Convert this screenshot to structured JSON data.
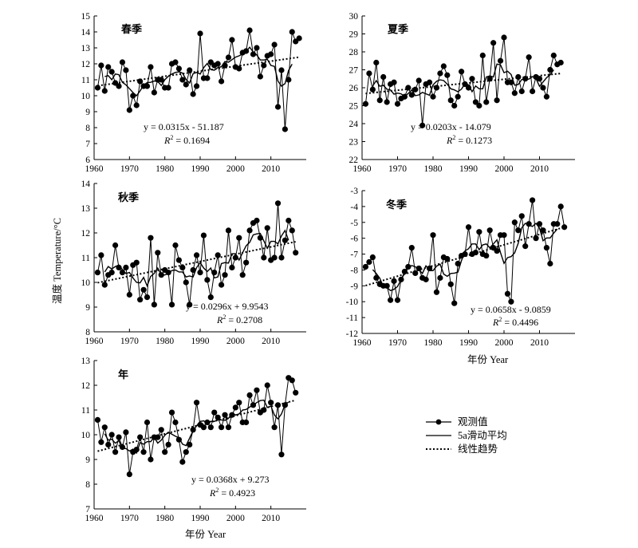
{
  "y_axis_label": "温度 Temperature/°C",
  "legend": {
    "observed": "观测值",
    "moving_avg": "5a滑动平均",
    "trend": "线性趋势"
  },
  "chart_data": [
    {
      "type": "line",
      "title": "春季",
      "xlabel": "",
      "ylabel": "温度 Temperature/°C",
      "xlim": [
        1960,
        2020
      ],
      "ylim": [
        6,
        15
      ],
      "xticks": [
        1960,
        1970,
        1980,
        1990,
        2000,
        2010
      ],
      "yticks": [
        6,
        7,
        8,
        9,
        10,
        11,
        12,
        13,
        14,
        15
      ],
      "years_start": 1961,
      "values": [
        10.5,
        11.9,
        10.3,
        11.8,
        11.5,
        10.8,
        10.6,
        12.1,
        11.6,
        9.1,
        10.0,
        9.4,
        10.9,
        10.6,
        10.6,
        11.8,
        10.2,
        11.0,
        11.0,
        10.5,
        10.5,
        12.0,
        12.1,
        11.7,
        11.0,
        10.7,
        11.6,
        10.1,
        10.6,
        13.9,
        11.1,
        11.1,
        12.1,
        11.9,
        12.0,
        10.9,
        11.9,
        12.4,
        13.5,
        11.8,
        11.7,
        12.7,
        12.8,
        14.1,
        12.6,
        13.0,
        11.2,
        11.9,
        12.5,
        12.6,
        13.2,
        9.3,
        11.6,
        7.9,
        11.0,
        14.0,
        13.4,
        13.6
      ],
      "trend": {
        "slope": 0.0315,
        "intercept": -51.187
      },
      "equation": "y = 0.0315x -  51.187",
      "r2_label": "R",
      "r2_value": " = 0.1694"
    },
    {
      "type": "line",
      "title": "夏季",
      "xlabel": "",
      "ylabel": "",
      "xlim": [
        1960,
        2020
      ],
      "ylim": [
        22,
        30
      ],
      "xticks": [
        1960,
        1970,
        1980,
        1990,
        2000,
        2010
      ],
      "yticks": [
        22,
        23,
        24,
        25,
        26,
        27,
        28,
        29,
        30
      ],
      "years_start": 1961,
      "values": [
        25.1,
        26.8,
        25.9,
        27.4,
        25.3,
        26.6,
        25.2,
        26.2,
        26.3,
        25.1,
        25.4,
        25.5,
        26.0,
        25.6,
        25.9,
        26.4,
        23.9,
        26.2,
        26.3,
        25.5,
        26.0,
        26.8,
        27.2,
        26.7,
        25.3,
        25.0,
        25.5,
        26.9,
        26.2,
        26.0,
        26.5,
        25.2,
        25.0,
        27.8,
        25.2,
        26.5,
        28.5,
        25.3,
        27.5,
        28.8,
        26.3,
        26.3,
        25.7,
        26.6,
        25.8,
        26.5,
        27.7,
        25.8,
        26.6,
        26.5,
        26.0,
        25.5,
        27.0,
        27.8,
        27.3,
        27.4
      ],
      "trend": {
        "slope": 0.0203,
        "intercept": -14.079
      },
      "equation": "y = 0.0203x -  14.079",
      "r2_label": "R",
      "r2_value": " = 0.1273"
    },
    {
      "type": "line",
      "title": "秋季",
      "xlabel": "",
      "ylabel": "",
      "xlim": [
        1960,
        2020
      ],
      "ylim": [
        8,
        14
      ],
      "xticks": [
        1960,
        1970,
        1980,
        1990,
        2000,
        2010
      ],
      "yticks": [
        8,
        9,
        10,
        11,
        12,
        13,
        14
      ],
      "years_start": 1961,
      "values": [
        10.4,
        11.1,
        9.9,
        10.3,
        10.4,
        11.5,
        10.6,
        10.4,
        10.6,
        9.5,
        10.7,
        10.8,
        9.3,
        9.7,
        9.4,
        11.8,
        9.1,
        11.2,
        10.3,
        10.5,
        10.4,
        9.1,
        11.5,
        10.9,
        10.6,
        10.0,
        9.1,
        10.5,
        11.1,
        10.4,
        11.9,
        10.1,
        9.4,
        10.4,
        11.1,
        9.9,
        10.3,
        12.1,
        10.6,
        11.0,
        11.8,
        10.3,
        10.8,
        12.1,
        12.4,
        12.5,
        11.8,
        11.0,
        12.2,
        10.9,
        11.0,
        13.2,
        11.0,
        11.7,
        12.5,
        12.1,
        11.2
      ],
      "trend": {
        "slope": 0.0296,
        "intercept": 9.9543
      },
      "equation": "y = 0.0296x + 9.9543",
      "r2_label": "R",
      "r2_value": " = 0.2708"
    },
    {
      "type": "line",
      "title": "冬季",
      "xlabel": "年份 Year",
      "ylabel": "",
      "xlim": [
        1960,
        2020
      ],
      "ylim": [
        -12,
        -3
      ],
      "xticks": [
        1960,
        1970,
        1980,
        1990,
        2000,
        2010
      ],
      "yticks": [
        -12,
        -11,
        -10,
        -9,
        -8,
        -7,
        -6,
        -5,
        -4,
        -3
      ],
      "years_start": 1961,
      "values": [
        -7.8,
        -7.5,
        -7.2,
        -8.5,
        -8.9,
        -9.0,
        -9.0,
        -9.9,
        -8.7,
        -9.9,
        -8.6,
        -8.1,
        -7.8,
        -6.6,
        -8.2,
        -7.9,
        -8.5,
        -8.6,
        -7.9,
        -5.8,
        -9.4,
        -8.5,
        -7.2,
        -7.3,
        -8.9,
        -10.1,
        -7.6,
        -7.1,
        -7.0,
        -5.3,
        -7.0,
        -6.9,
        -5.6,
        -7.0,
        -7.1,
        -5.5,
        -6.6,
        -6.8,
        -5.8,
        -5.8,
        -9.5,
        -10.0,
        -5.0,
        -5.5,
        -4.6,
        -6.5,
        -5.1,
        -3.6,
        -6.0,
        -5.1,
        -5.5,
        -6.6,
        -7.6,
        -5.1,
        -5.1,
        -4.0,
        -5.3
      ],
      "trend": {
        "slope": 0.0658,
        "intercept": -9.0859
      },
      "equation": "y = 0.0658x -  9.0859",
      "r2_label": "R",
      "r2_value": " = 0.4496"
    },
    {
      "type": "line",
      "title": "年",
      "xlabel": "年份 Year",
      "ylabel": "",
      "xlim": [
        1960,
        2020
      ],
      "ylim": [
        7,
        13
      ],
      "xticks": [
        1960,
        1970,
        1980,
        1990,
        2000,
        2010
      ],
      "yticks": [
        7,
        8,
        9,
        10,
        11,
        12,
        13
      ],
      "years_start": 1961,
      "values": [
        10.6,
        9.7,
        10.3,
        9.6,
        10.0,
        9.3,
        9.9,
        9.5,
        10.1,
        8.4,
        9.3,
        9.4,
        9.9,
        9.3,
        10.5,
        9.0,
        9.9,
        9.9,
        10.2,
        9.3,
        9.6,
        10.9,
        10.5,
        9.8,
        8.9,
        9.3,
        9.6,
        10.2,
        11.3,
        10.4,
        10.3,
        10.5,
        10.3,
        10.9,
        10.7,
        10.3,
        10.8,
        10.3,
        10.8,
        11.1,
        11.3,
        10.5,
        10.5,
        11.6,
        11.2,
        11.8,
        10.9,
        11.0,
        12.0,
        11.3,
        10.3,
        11.2,
        9.2,
        11.2,
        12.3,
        12.2,
        11.7
      ],
      "trend": {
        "slope": 0.0368,
        "intercept": 9.273
      },
      "equation": "y = 0.0368x + 9.273",
      "r2_label": "R",
      "r2_value": " = 0.4923"
    }
  ]
}
